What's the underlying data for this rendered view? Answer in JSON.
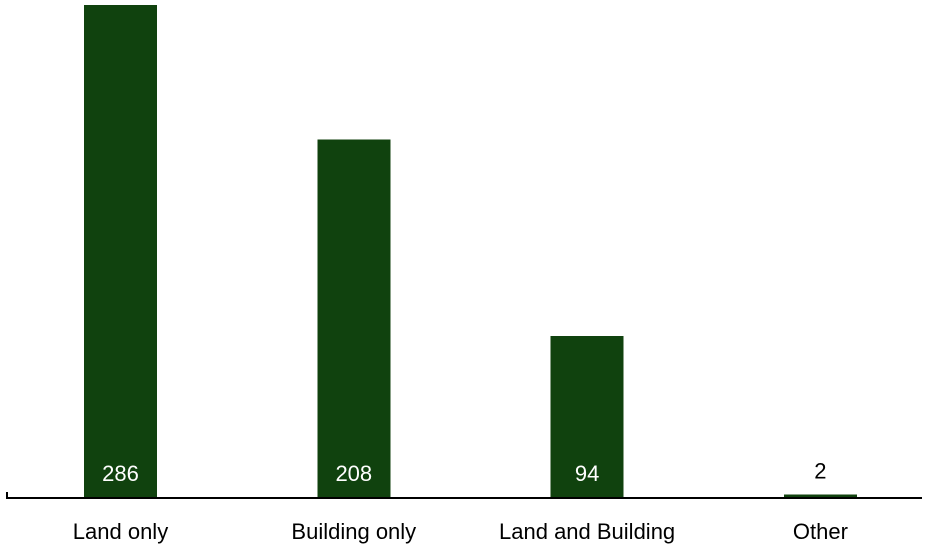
{
  "chart_data": {
    "type": "bar",
    "categories": [
      "Land only",
      "Building only",
      "Land and Building",
      "Other"
    ],
    "values": [
      286,
      208,
      94,
      2
    ],
    "value_labels": [
      "286",
      "208",
      "94",
      "2"
    ],
    "title": "",
    "xlabel": "",
    "ylabel": "",
    "ylim": [
      0,
      286
    ],
    "grid": false,
    "show_y_axis": false,
    "data_label_position": "inside-bottom",
    "colors": {
      "bar": "#10420e",
      "label_inside": "#ffffff",
      "label_outside": "#000000",
      "axis": "#000000"
    }
  }
}
